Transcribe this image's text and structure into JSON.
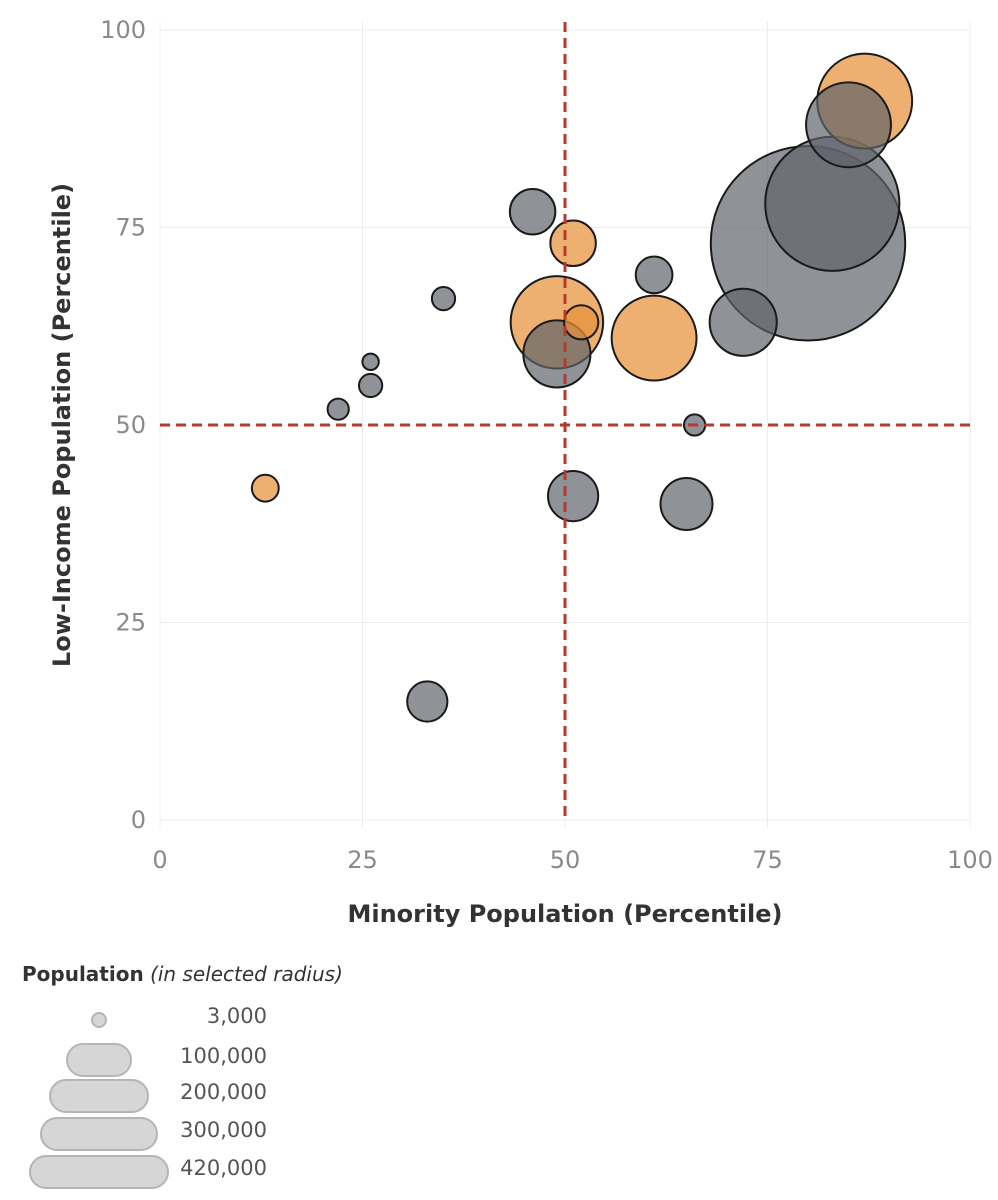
{
  "chart_data": {
    "type": "scatter",
    "xlabel": "Minority Population (Percentile)",
    "ylabel": "Low-Income Population (Percentile)",
    "xlim": [
      0,
      100
    ],
    "ylim": [
      0,
      100
    ],
    "xticks": [
      "0",
      "25",
      "50",
      "75",
      "100"
    ],
    "yticks": [
      "0",
      "25",
      "50",
      "75",
      "100"
    ],
    "reference_lines": {
      "x": 50,
      "y": 50,
      "color": "#b33a2e"
    },
    "colors": {
      "gray": "#5f646b",
      "orange": "#e8913a"
    },
    "points": [
      {
        "x": 80,
        "y": 73,
        "pop": 420000,
        "color": "gray"
      },
      {
        "x": 83,
        "y": 78,
        "pop": 200000,
        "color": "gray"
      },
      {
        "x": 85,
        "y": 88,
        "pop": 80000,
        "color": "gray"
      },
      {
        "x": 87,
        "y": 91,
        "pop": 100000,
        "color": "orange"
      },
      {
        "x": 72,
        "y": 63,
        "pop": 50000,
        "color": "gray"
      },
      {
        "x": 61,
        "y": 61,
        "pop": 80000,
        "color": "orange"
      },
      {
        "x": 61,
        "y": 69,
        "pop": 15000,
        "color": "gray"
      },
      {
        "x": 66,
        "y": 50,
        "pop": 5000,
        "color": "gray"
      },
      {
        "x": 65,
        "y": 40,
        "pop": 30000,
        "color": "gray"
      },
      {
        "x": 51,
        "y": 41,
        "pop": 28000,
        "color": "gray"
      },
      {
        "x": 49,
        "y": 59,
        "pop": 50000,
        "color": "gray"
      },
      {
        "x": 49,
        "y": 63,
        "pop": 95000,
        "color": "orange"
      },
      {
        "x": 52,
        "y": 63,
        "pop": 13000,
        "color": "orange"
      },
      {
        "x": 51,
        "y": 73,
        "pop": 23000,
        "color": "orange"
      },
      {
        "x": 46,
        "y": 77,
        "pop": 23000,
        "color": "gray"
      },
      {
        "x": 35,
        "y": 66,
        "pop": 6000,
        "color": "gray"
      },
      {
        "x": 26,
        "y": 58,
        "pop": 3000,
        "color": "gray"
      },
      {
        "x": 26,
        "y": 55,
        "pop": 6000,
        "color": "gray"
      },
      {
        "x": 22,
        "y": 52,
        "pop": 5000,
        "color": "gray"
      },
      {
        "x": 13,
        "y": 42,
        "pop": 8000,
        "color": "orange"
      },
      {
        "x": 33,
        "y": 15,
        "pop": 18000,
        "color": "gray"
      }
    ]
  },
  "legend": {
    "title": "Population",
    "subtitle": "(in selected radius)",
    "items": [
      {
        "label": "3,000",
        "value": 3000
      },
      {
        "label": "100,000",
        "value": 100000
      },
      {
        "label": "200,000",
        "value": 200000
      },
      {
        "label": "300,000",
        "value": 300000
      },
      {
        "label": "420,000",
        "value": 420000
      }
    ]
  }
}
